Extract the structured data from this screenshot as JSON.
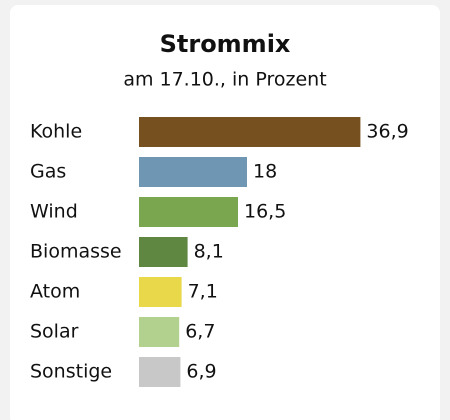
{
  "chart_data": {
    "type": "bar",
    "orientation": "horizontal",
    "title": "Strommix",
    "subtitle": "am 17.10., in Prozent",
    "categories": [
      "Kohle",
      "Gas",
      "Wind",
      "Biomasse",
      "Atom",
      "Solar",
      "Sonstige"
    ],
    "values": [
      36.9,
      18,
      16.5,
      8.1,
      7.1,
      6.7,
      6.9
    ],
    "value_labels": [
      "36,9",
      "18",
      "16,5",
      "8,1",
      "7,1",
      "6,7",
      "6,9"
    ],
    "colors": [
      "#76501e",
      "#6f97b3",
      "#7aa64f",
      "#5f8742",
      "#e8d84a",
      "#b2d18f",
      "#c8c8c8"
    ]
  }
}
